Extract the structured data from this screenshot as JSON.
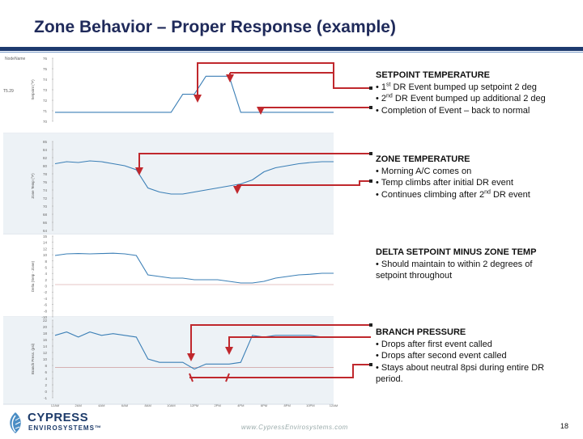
{
  "title": "Zone Behavior – Proper Response (example)",
  "footer": {
    "url": "www.CypressEnvirosystems.com",
    "page": "18"
  },
  "logo": {
    "name": "CYPRESS",
    "sub": "ENVIROSYSTEMS™"
  },
  "annotations": [
    {
      "heading": "SETPOINT TEMPERATURE",
      "bullets": [
        {
          "pre": "• 1",
          "sup": "st",
          "post": " DR Event bumped up setpoint 2 deg"
        },
        {
          "pre": "• 2",
          "sup": "nd",
          "post": " DR Event bumped up additional 2 deg"
        },
        {
          "pre": "• Completion of Event – back to normal",
          "sup": "",
          "post": ""
        }
      ]
    },
    {
      "heading": "ZONE TEMPERATURE",
      "bullets": [
        {
          "pre": "• Morning A/C comes on",
          "sup": "",
          "post": ""
        },
        {
          "pre": "• Temp climbs after initial DR event",
          "sup": "",
          "post": ""
        },
        {
          "pre": "• Continues climbing after 2",
          "sup": "nd",
          "post": " DR event"
        }
      ]
    },
    {
      "heading": "DELTA SETPOINT MINUS ZONE TEMP",
      "bullets": [
        {
          "pre": "• Should maintain to within 2 degrees of",
          "sup": "",
          "post": ""
        },
        {
          "pre": "   setpoint throughout",
          "sup": "",
          "post": ""
        }
      ]
    },
    {
      "heading": "BRANCH PRESSURE",
      "bullets": [
        {
          "pre": "• Drops after first event called",
          "sup": "",
          "post": ""
        },
        {
          "pre": "• Drops after second event called",
          "sup": "",
          "post": ""
        },
        {
          "pre": "• Stays about neutral 8psi during entire DR",
          "sup": "",
          "post": ""
        },
        {
          "pre": "   period.",
          "sup": "",
          "post": ""
        }
      ]
    }
  ],
  "colors": {
    "title": "#1f2a5a",
    "bar": "#1e3a6e",
    "line": "#3b7fb6",
    "arrow": "#c0282d",
    "panel": "#edf2f6"
  },
  "chart_data": [
    {
      "type": "line",
      "header_label": "NodeName",
      "ylabel": "Setpoint (°F)",
      "left_label": "T5.29",
      "ylim": [
        69,
        76
      ],
      "yticks": [
        "76",
        "75",
        "74",
        "73",
        "72",
        "71",
        "70"
      ],
      "x": [
        0,
        1,
        2,
        3,
        4,
        5,
        6,
        7,
        8,
        9,
        10,
        11,
        12,
        13,
        14,
        15,
        16,
        17,
        18,
        19,
        20,
        21,
        22,
        23,
        24
      ],
      "values": [
        70,
        70,
        70,
        70,
        70,
        70,
        70,
        70,
        70,
        70,
        70,
        72,
        72,
        74,
        74,
        74,
        70,
        70,
        70,
        70,
        70,
        70,
        70,
        70,
        70
      ]
    },
    {
      "type": "line",
      "ylabel": "Zone Temp (°F)",
      "ylim": [
        63,
        85
      ],
      "yticks": [
        "85",
        "84",
        "82",
        "80",
        "78",
        "76",
        "74",
        "72",
        "70",
        "68",
        "66",
        "64"
      ],
      "x": [
        0,
        1,
        2,
        3,
        4,
        5,
        6,
        7,
        8,
        9,
        10,
        11,
        12,
        13,
        14,
        15,
        16,
        17,
        18,
        19,
        20,
        21,
        22,
        23,
        24
      ],
      "values": [
        79.5,
        80.0,
        79.8,
        80.2,
        80.0,
        79.5,
        79.0,
        78.0,
        73.5,
        72.5,
        72.0,
        72.0,
        72.5,
        73.0,
        73.5,
        74.0,
        74.5,
        75.5,
        77.5,
        78.5,
        79.0,
        79.5,
        79.8,
        80.0,
        80.0
      ]
    },
    {
      "type": "line",
      "ylabel": "Delta (Setp - Zone)",
      "ylim": [
        -10,
        15
      ],
      "yticks": [
        "15",
        "14",
        "12",
        "10",
        "8",
        "6",
        "4",
        "2",
        "0",
        "-2",
        "-4",
        "-6",
        "-8",
        "-10"
      ],
      "x": [
        0,
        1,
        2,
        3,
        4,
        5,
        6,
        7,
        8,
        9,
        10,
        11,
        12,
        13,
        14,
        15,
        16,
        17,
        18,
        19,
        20,
        21,
        22,
        23,
        24
      ],
      "values": [
        9.0,
        9.5,
        9.6,
        9.5,
        9.6,
        9.7,
        9.5,
        9.0,
        3.0,
        2.5,
        2.0,
        2.0,
        1.5,
        1.5,
        1.5,
        1.0,
        0.5,
        0.5,
        1.0,
        2.0,
        2.5,
        3.0,
        3.2,
        3.5,
        3.5
      ]
    },
    {
      "type": "line",
      "ylabel": "Branch Press. (psi)",
      "ylim": [
        -1,
        22
      ],
      "yticks": [
        "22",
        "20",
        "18",
        "16",
        "14",
        "12",
        "10",
        "8",
        "6",
        "4",
        "2",
        "0",
        "-1"
      ],
      "xticks": [
        "12AM",
        "2AM",
        "4AM",
        "6AM",
        "8AM",
        "10AM",
        "12PM",
        "2PM",
        "4PM",
        "6PM",
        "8PM",
        "10PM",
        "12AM"
      ],
      "x": [
        0,
        1,
        2,
        3,
        4,
        5,
        6,
        7,
        8,
        9,
        10,
        11,
        12,
        13,
        14,
        15,
        16,
        17,
        18,
        19,
        20,
        21,
        22,
        23,
        24
      ],
      "values": [
        17.5,
        18.5,
        17.0,
        18.5,
        17.5,
        18.0,
        17.5,
        17.0,
        10.5,
        9.5,
        9.5,
        9.5,
        7.5,
        9.0,
        9.0,
        9.0,
        9.5,
        17.5,
        17.0,
        17.5,
        17.5,
        17.5,
        17.5,
        17.0,
        17.0
      ]
    }
  ]
}
